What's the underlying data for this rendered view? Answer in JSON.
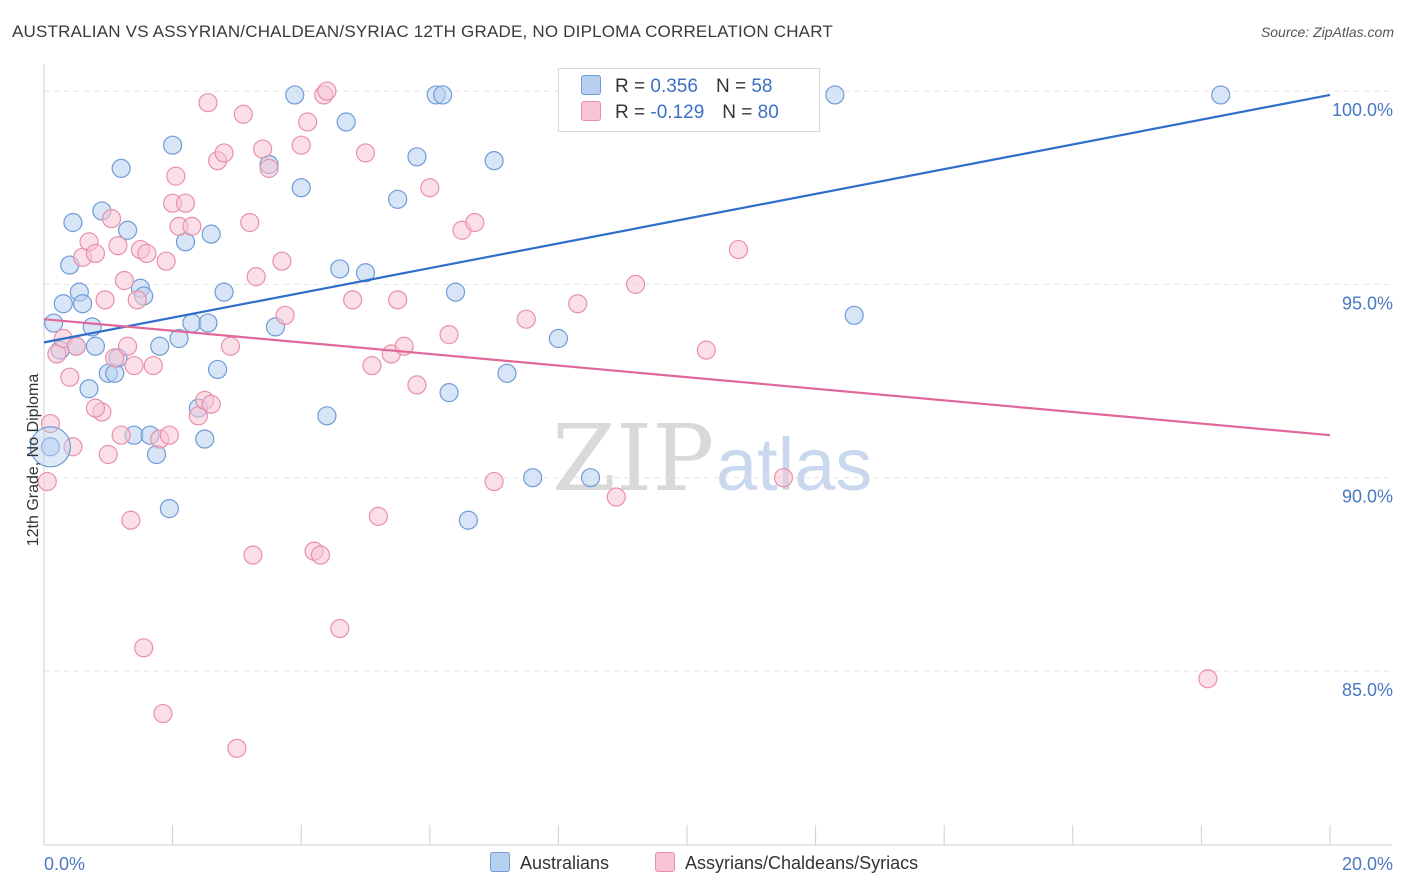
{
  "title": "AUSTRALIAN VS ASSYRIAN/CHALDEAN/SYRIAC 12TH GRADE, NO DIPLOMA CORRELATION CHART",
  "source": "Source: ZipAtlas.com",
  "watermark": {
    "zip": "ZIP",
    "atlas": "atlas"
  },
  "colors": {
    "blue_fill": "#b8d0f0",
    "blue_stroke": "#6f9bd8",
    "blue_line": "#2f6fcc",
    "pink_fill": "#f8c4d4",
    "pink_stroke": "#e890ab",
    "pink_line": "#e0679a",
    "tick_text": "#4a78c2",
    "grid": "#e2e2e2"
  },
  "legend": {
    "rows": [
      {
        "r_label": "R =",
        "r_value": "0.356",
        "n_label": "N =",
        "n_value": "58"
      },
      {
        "r_label": "R =",
        "r_value": "-0.129",
        "n_label": "N =",
        "n_value": "80"
      }
    ],
    "bottom": [
      "Australians",
      "Assyrians/Chaldeans/Syriacs"
    ]
  },
  "chart_data": {
    "type": "scatter",
    "xlabel": "",
    "ylabel": "12th Grade, No Diploma",
    "xlim": [
      0,
      20
    ],
    "ylim": [
      80.5,
      100.7
    ],
    "x_tick_labels": [
      "0.0%",
      "20.0%"
    ],
    "y_ticks": [
      85,
      90,
      95,
      100
    ],
    "y_tick_labels": [
      "85.0%",
      "90.0%",
      "95.0%",
      "100.0%"
    ],
    "grid": true,
    "legend_placement": "top-center",
    "series": [
      {
        "name": "Australians",
        "color": "#b8d0f0",
        "trend": {
          "x": [
            0,
            20
          ],
          "y": [
            93.5,
            99.9
          ]
        },
        "points": [
          [
            0.1,
            90.8
          ],
          [
            0.15,
            94.0
          ],
          [
            0.25,
            93.3
          ],
          [
            0.3,
            94.5
          ],
          [
            0.4,
            95.5
          ],
          [
            0.45,
            96.6
          ],
          [
            0.5,
            93.4
          ],
          [
            0.55,
            94.8
          ],
          [
            0.6,
            94.5
          ],
          [
            0.7,
            92.3
          ],
          [
            0.75,
            93.9
          ],
          [
            0.8,
            93.4
          ],
          [
            0.9,
            96.9
          ],
          [
            1.0,
            92.7
          ],
          [
            1.1,
            92.7
          ],
          [
            1.15,
            93.1
          ],
          [
            1.2,
            98.0
          ],
          [
            1.3,
            96.4
          ],
          [
            1.4,
            91.1
          ],
          [
            1.5,
            94.9
          ],
          [
            1.55,
            94.7
          ],
          [
            1.65,
            91.1
          ],
          [
            1.75,
            90.6
          ],
          [
            1.8,
            93.4
          ],
          [
            1.95,
            89.2
          ],
          [
            2.0,
            98.6
          ],
          [
            2.1,
            93.6
          ],
          [
            2.2,
            96.1
          ],
          [
            2.3,
            94.0
          ],
          [
            2.4,
            91.8
          ],
          [
            2.5,
            91.0
          ],
          [
            2.55,
            94.0
          ],
          [
            2.6,
            96.3
          ],
          [
            2.7,
            92.8
          ],
          [
            2.8,
            94.8
          ],
          [
            3.5,
            98.1
          ],
          [
            3.6,
            93.9
          ],
          [
            3.9,
            99.9
          ],
          [
            4.0,
            97.5
          ],
          [
            4.4,
            91.6
          ],
          [
            4.6,
            95.4
          ],
          [
            4.7,
            99.2
          ],
          [
            5.0,
            95.3
          ],
          [
            5.5,
            97.2
          ],
          [
            5.8,
            98.3
          ],
          [
            6.1,
            99.9
          ],
          [
            6.2,
            99.9
          ],
          [
            6.3,
            92.2
          ],
          [
            6.4,
            94.8
          ],
          [
            6.6,
            88.9
          ],
          [
            7.0,
            98.2
          ],
          [
            7.2,
            92.7
          ],
          [
            7.6,
            90.0
          ],
          [
            8.0,
            93.6
          ],
          [
            8.5,
            90.0
          ],
          [
            12.3,
            99.9
          ],
          [
            12.6,
            94.2
          ],
          [
            18.3,
            99.9
          ]
        ]
      },
      {
        "name": "Assyrians/Chaldeans/Syriacs",
        "color": "#f8c4d4",
        "trend": {
          "x": [
            0,
            20
          ],
          "y": [
            94.1,
            91.1
          ]
        },
        "points": [
          [
            0.05,
            89.9
          ],
          [
            0.1,
            91.4
          ],
          [
            0.2,
            93.2
          ],
          [
            0.3,
            93.6
          ],
          [
            0.4,
            92.6
          ],
          [
            0.45,
            90.8
          ],
          [
            0.5,
            93.4
          ],
          [
            0.6,
            95.7
          ],
          [
            0.7,
            96.1
          ],
          [
            0.8,
            95.8
          ],
          [
            0.9,
            91.7
          ],
          [
            0.95,
            94.6
          ],
          [
            1.0,
            90.6
          ],
          [
            1.05,
            96.7
          ],
          [
            1.1,
            93.1
          ],
          [
            1.15,
            96.0
          ],
          [
            1.2,
            91.1
          ],
          [
            1.25,
            95.1
          ],
          [
            1.3,
            93.4
          ],
          [
            1.35,
            88.9
          ],
          [
            1.4,
            92.9
          ],
          [
            1.45,
            94.6
          ],
          [
            1.5,
            95.9
          ],
          [
            1.55,
            85.6
          ],
          [
            1.6,
            95.8
          ],
          [
            1.7,
            92.9
          ],
          [
            1.8,
            91.0
          ],
          [
            1.85,
            83.9
          ],
          [
            1.9,
            95.6
          ],
          [
            1.95,
            91.1
          ],
          [
            2.0,
            97.1
          ],
          [
            2.05,
            97.8
          ],
          [
            2.1,
            96.5
          ],
          [
            2.2,
            97.1
          ],
          [
            2.3,
            96.5
          ],
          [
            2.4,
            91.6
          ],
          [
            2.5,
            92.0
          ],
          [
            2.55,
            99.7
          ],
          [
            2.6,
            91.9
          ],
          [
            2.7,
            98.2
          ],
          [
            2.8,
            98.4
          ],
          [
            2.9,
            93.4
          ],
          [
            3.0,
            83.0
          ],
          [
            3.1,
            99.4
          ],
          [
            3.2,
            96.6
          ],
          [
            3.25,
            88.0
          ],
          [
            3.3,
            95.2
          ],
          [
            3.4,
            98.5
          ],
          [
            3.5,
            98.0
          ],
          [
            3.7,
            95.6
          ],
          [
            3.75,
            94.2
          ],
          [
            4.0,
            98.6
          ],
          [
            4.1,
            99.2
          ],
          [
            4.2,
            88.1
          ],
          [
            4.3,
            88.0
          ],
          [
            4.35,
            99.9
          ],
          [
            4.4,
            100.0
          ],
          [
            4.6,
            86.1
          ],
          [
            4.8,
            94.6
          ],
          [
            5.0,
            98.4
          ],
          [
            5.1,
            92.9
          ],
          [
            5.2,
            89.0
          ],
          [
            5.4,
            93.2
          ],
          [
            5.5,
            94.6
          ],
          [
            5.6,
            93.4
          ],
          [
            5.8,
            92.4
          ],
          [
            6.0,
            97.5
          ],
          [
            6.3,
            93.7
          ],
          [
            6.5,
            96.4
          ],
          [
            6.7,
            96.6
          ],
          [
            7.0,
            89.9
          ],
          [
            7.5,
            94.1
          ],
          [
            8.3,
            94.5
          ],
          [
            8.9,
            89.5
          ],
          [
            9.2,
            95.0
          ],
          [
            10.3,
            93.3
          ],
          [
            10.8,
            95.9
          ],
          [
            11.5,
            90.0
          ],
          [
            18.1,
            84.8
          ],
          [
            0.8,
            91.8
          ]
        ]
      }
    ]
  }
}
